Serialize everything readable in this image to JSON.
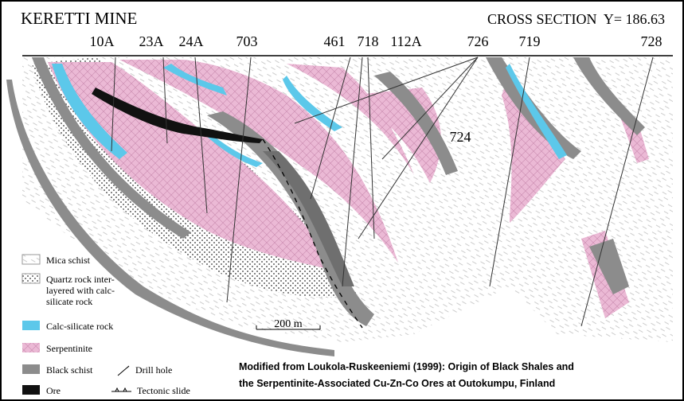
{
  "header": {
    "title": "KERETTI MINE",
    "section": "CROSS SECTION  Y= 186.63"
  },
  "drill_holes": [
    {
      "label": "10A"
    },
    {
      "label": "23A"
    },
    {
      "label": "24A"
    },
    {
      "label": "703"
    },
    {
      "label": "461"
    },
    {
      "label": "718"
    },
    {
      "label": "112A"
    },
    {
      "label": "726"
    },
    {
      "label": "719"
    },
    {
      "label": "728"
    },
    {
      "label": "724"
    }
  ],
  "legend": {
    "mica_schist": "Mica schist",
    "quartz_rock": [
      "Quartz rock inter-",
      "layered with calc-",
      "silicate rock"
    ],
    "calc_silicate": "Calc-silicate rock",
    "serpentinite": "Serpentinite",
    "black_schist": "Black schist",
    "drill_hole": "Drill hole",
    "ore": "Ore",
    "tectonic_slide": "Tectonic slide"
  },
  "scale_bar": "200 m",
  "caption": [
    "Modified from Loukola-Ruskeeniemi (1999): Origin of Black Shales and",
    "the Serpentinite-Associated Cu-Zn-Co Ores at Outokumpu, Finland"
  ]
}
